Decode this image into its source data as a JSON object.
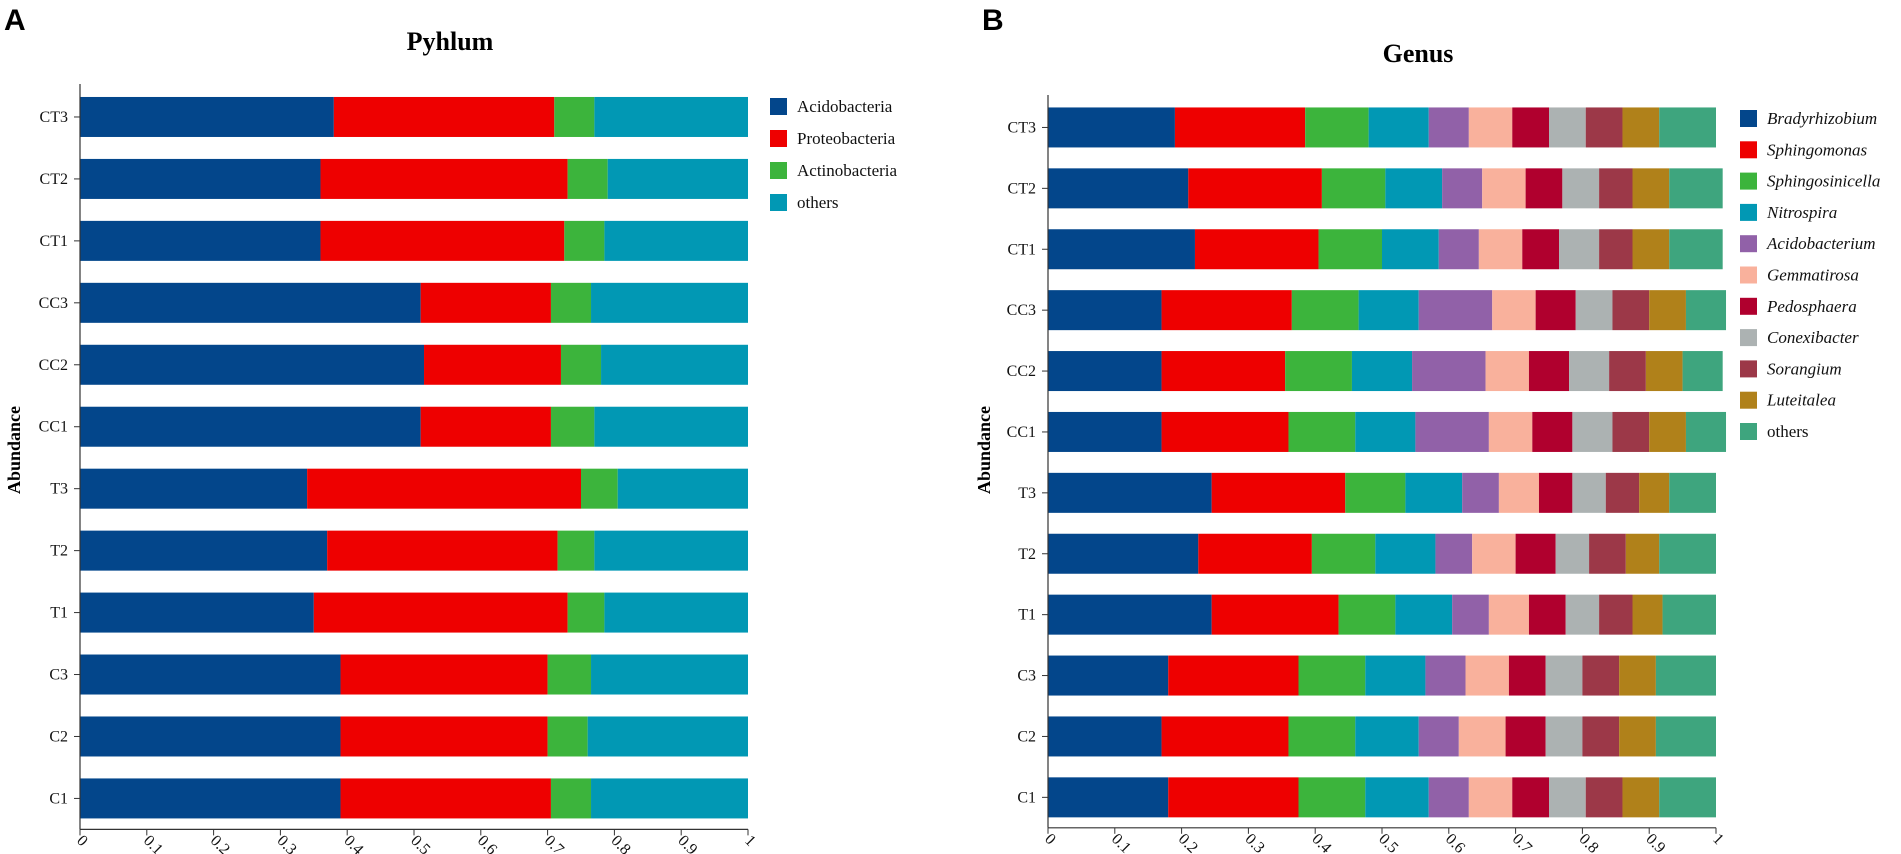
{
  "panels": [
    {
      "letter": "A"
    },
    {
      "letter": "B"
    }
  ],
  "colors": {
    "phylum": [
      "#03468b",
      "#ee0000",
      "#3cb43c",
      "#0198b4"
    ],
    "genus": [
      "#03468b",
      "#ee0000",
      "#3cb43c",
      "#0198b4",
      "#9161a8",
      "#f9b19c",
      "#b0002e",
      "#acb2b2",
      "#9c3848",
      "#b0811a",
      "#3ea57e"
    ]
  },
  "chart_data": [
    {
      "type": "bar",
      "orientation": "horizontal",
      "stacked": true,
      "title": "Pyhlum",
      "ylabel": "Abundance",
      "xlabel": "",
      "xlim": [
        0,
        1
      ],
      "xticks": [
        "0",
        "0.1",
        "0.2",
        "0.3",
        "0.4",
        "0.5",
        "0.6",
        "0.7",
        "0.8",
        "0.9",
        "1"
      ],
      "categories": [
        "CT3",
        "CT2",
        "CT1",
        "CC3",
        "CC2",
        "CC1",
        "T3",
        "T2",
        "T1",
        "C3",
        "C2",
        "C1"
      ],
      "series": [
        {
          "name": "Acidobacteria",
          "values": [
            0.38,
            0.36,
            0.36,
            0.51,
            0.515,
            0.51,
            0.34,
            0.37,
            0.35,
            0.39,
            0.39,
            0.39
          ]
        },
        {
          "name": "Proteobacteria",
          "values": [
            0.33,
            0.37,
            0.365,
            0.195,
            0.205,
            0.195,
            0.41,
            0.345,
            0.38,
            0.31,
            0.31,
            0.315
          ]
        },
        {
          "name": "Actinobacteria",
          "values": [
            0.06,
            0.06,
            0.06,
            0.06,
            0.06,
            0.065,
            0.055,
            0.055,
            0.055,
            0.065,
            0.06,
            0.06
          ]
        },
        {
          "name": "others",
          "values": [
            0.23,
            0.21,
            0.215,
            0.235,
            0.22,
            0.23,
            0.195,
            0.23,
            0.215,
            0.235,
            0.24,
            0.235
          ]
        }
      ],
      "legend_position": "right",
      "legend_italic": false
    },
    {
      "type": "bar",
      "orientation": "horizontal",
      "stacked": true,
      "title": "Genus",
      "ylabel": "Abundance",
      "xlabel": "",
      "xlim": [
        0,
        1
      ],
      "xticks": [
        "0",
        "0.1",
        "0.2",
        "0.3",
        "0.4",
        "0.5",
        "0.6",
        "0.7",
        "0.8",
        "0.9",
        "1"
      ],
      "categories": [
        "CT3",
        "CT2",
        "CT1",
        "CC3",
        "CC2",
        "CC1",
        "T3",
        "T2",
        "T1",
        "C3",
        "C2",
        "C1"
      ],
      "series": [
        {
          "name": "Bradyrhizobium",
          "values": [
            0.19,
            0.21,
            0.22,
            0.17,
            0.17,
            0.17,
            0.245,
            0.225,
            0.245,
            0.18,
            0.17,
            0.18
          ]
        },
        {
          "name": "Sphingomonas",
          "values": [
            0.195,
            0.2,
            0.185,
            0.195,
            0.185,
            0.19,
            0.2,
            0.17,
            0.19,
            0.195,
            0.19,
            0.195
          ]
        },
        {
          "name": "Sphingosinicella",
          "values": [
            0.095,
            0.095,
            0.095,
            0.1,
            0.1,
            0.1,
            0.09,
            0.095,
            0.085,
            0.1,
            0.1,
            0.1
          ]
        },
        {
          "name": "Nitrospira",
          "values": [
            0.09,
            0.085,
            0.085,
            0.09,
            0.09,
            0.09,
            0.085,
            0.09,
            0.085,
            0.09,
            0.095,
            0.095
          ]
        },
        {
          "name": "Acidobacterium",
          "values": [
            0.06,
            0.06,
            0.06,
            0.11,
            0.11,
            0.11,
            0.055,
            0.055,
            0.055,
            0.06,
            0.06,
            0.06
          ]
        },
        {
          "name": "Gemmatirosa",
          "values": [
            0.065,
            0.065,
            0.065,
            0.065,
            0.065,
            0.065,
            0.06,
            0.065,
            0.06,
            0.065,
            0.07,
            0.065
          ]
        },
        {
          "name": "Pedosphaera",
          "values": [
            0.055,
            0.055,
            0.055,
            0.06,
            0.06,
            0.06,
            0.05,
            0.06,
            0.055,
            0.055,
            0.06,
            0.055
          ]
        },
        {
          "name": "Conexibacter",
          "values": [
            0.055,
            0.055,
            0.06,
            0.055,
            0.06,
            0.06,
            0.05,
            0.05,
            0.05,
            0.055,
            0.055,
            0.055
          ]
        },
        {
          "name": "Sorangium",
          "values": [
            0.055,
            0.05,
            0.05,
            0.055,
            0.055,
            0.055,
            0.05,
            0.055,
            0.05,
            0.055,
            0.055,
            0.055
          ]
        },
        {
          "name": "Luteitalea",
          "values": [
            0.055,
            0.055,
            0.055,
            0.055,
            0.055,
            0.055,
            0.045,
            0.05,
            0.045,
            0.055,
            0.055,
            0.055
          ]
        },
        {
          "name": "others",
          "values": [
            0.085,
            0.08,
            0.08,
            0.06,
            0.06,
            0.06,
            0.07,
            0.085,
            0.08,
            0.09,
            0.09,
            0.085
          ]
        }
      ],
      "legend_position": "right",
      "legend_italic": true
    }
  ]
}
